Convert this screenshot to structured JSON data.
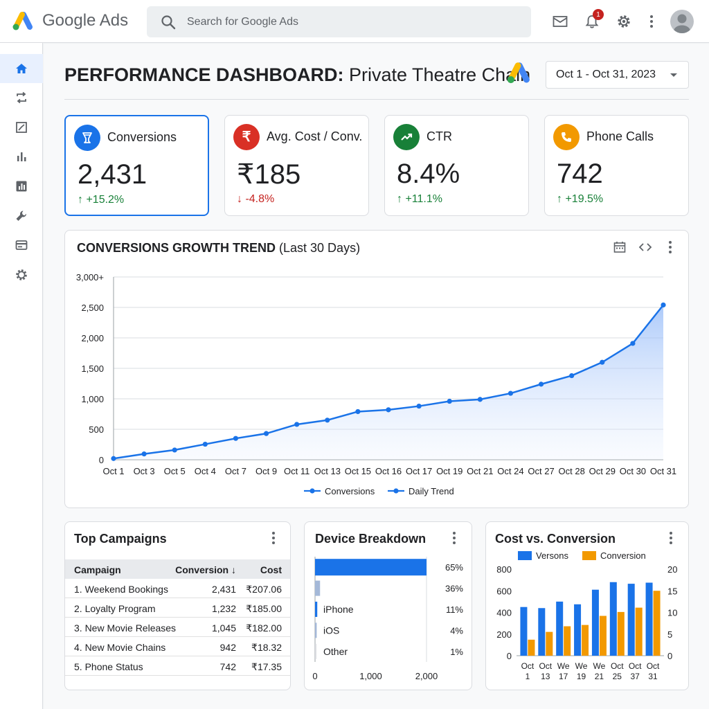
{
  "app": {
    "brand": "Google Ads",
    "search_placeholder": "Search for Google Ads",
    "notification_count": "1"
  },
  "colors": {
    "accent": "#1a73e8",
    "logo_blue": "#4285f4",
    "logo_yellow": "#fbbc04",
    "logo_green": "#34a853",
    "up": "#188038",
    "down": "#c5221f",
    "orange": "#f29900"
  },
  "sidebar": {
    "items": [
      {
        "icon": "home-icon",
        "active": true
      },
      {
        "icon": "sync-icon"
      },
      {
        "icon": "edit-chart-icon"
      },
      {
        "icon": "bar-chart-icon"
      },
      {
        "icon": "report-icon"
      },
      {
        "icon": "wrench-icon"
      },
      {
        "icon": "billing-icon"
      },
      {
        "icon": "settings-icon"
      }
    ]
  },
  "header": {
    "title_strong": "PERFORMANCE DASHBOARD:",
    "title_rest": " Private Theatre Chain",
    "date_range": "Oct 1 - Oct 31, 2023"
  },
  "kpis": [
    {
      "label": "Conversions",
      "value": "2,431",
      "delta": "↑ +15.2%",
      "direction": "up",
      "icon": "trophy-icon",
      "icon_color": "#1a73e8"
    },
    {
      "label": "Avg. Cost / Conv.",
      "value": "₹185",
      "delta": "↓ -4.8%",
      "direction": "down",
      "icon": "rupee-icon",
      "icon_color": "#d93025"
    },
    {
      "label": "CTR",
      "value": "8.4%",
      "delta": "↑ +11.1%",
      "direction": "up",
      "icon": "trending-up-icon",
      "icon_color": "#188038"
    },
    {
      "label": "Phone Calls",
      "value": "742",
      "delta": "↑ +19.5%",
      "direction": "up",
      "icon": "phone-icon",
      "icon_color": "#f29900"
    }
  ],
  "trend": {
    "title_strong": "CONVERSIONS GROWTH TREND",
    "title_rest": " (Last 30 Days)",
    "chart_data": {
      "type": "area",
      "x": [
        "Oct 1",
        "Oct 3",
        "Oct 5",
        "Oct 4",
        "Oct 7",
        "Oct 9",
        "Oct 11",
        "Oct 13",
        "Oct 15",
        "Oct 16",
        "Oct 17",
        "Oct 19",
        "Oct 21",
        "Oct 24",
        "Oct 27",
        "Oct 28",
        "Oct 29",
        "Oct 30",
        "Oct 31"
      ],
      "series": [
        {
          "name": "Conversions",
          "values": [
            20,
            95,
            160,
            255,
            350,
            430,
            580,
            650,
            790,
            820,
            880,
            960,
            990,
            1090,
            1240,
            1380,
            1600,
            1910,
            2540
          ]
        }
      ],
      "legend": [
        "Conversions",
        "Daily Trend"
      ],
      "y_ticks": [
        "0",
        "500",
        "1,000",
        "1,500",
        "2,000",
        "2,500",
        "3,000+"
      ],
      "ylim": [
        0,
        3000
      ],
      "grid": true,
      "legend_position": "bottom"
    }
  },
  "campaigns": {
    "title": "Top Campaigns",
    "headers": [
      "Campaign",
      "Conversion ↓",
      "Cost"
    ],
    "rows": [
      [
        "1. Weekend Bookings",
        "2,431",
        "₹207.06"
      ],
      [
        "2. Loyalty Program",
        "1,232",
        "₹185.00"
      ],
      [
        "3. New Movie Releases",
        "1,045",
        "₹182.00"
      ],
      [
        "4. New Movie Chains",
        "942",
        "₹18.32"
      ],
      [
        "5. Phone Status",
        "742",
        "₹17.35"
      ]
    ]
  },
  "device": {
    "title": "Device Breakdown",
    "chart_data": {
      "type": "bar",
      "orientation": "horizontal",
      "categories": [
        "",
        "",
        "iPhone",
        "iOS",
        "Other"
      ],
      "values": [
        2000,
        90,
        40,
        30,
        20
      ],
      "value_labels": [
        "65%",
        "36%",
        "11%",
        "4%",
        "1%"
      ],
      "x_ticks": [
        "0",
        "1,000",
        "2,000"
      ],
      "xlim": [
        0,
        2000
      ]
    }
  },
  "costconv": {
    "title": "Cost vs. Conversion",
    "chart_data": {
      "type": "bar",
      "categories": [
        [
          "Oct",
          "1"
        ],
        [
          "Oct",
          "13"
        ],
        [
          "We",
          "17"
        ],
        [
          "We",
          "19"
        ],
        [
          "We",
          "21"
        ],
        [
          "Oct",
          "25"
        ],
        [
          "Oct",
          "37"
        ],
        [
          "Oct",
          "31"
        ]
      ],
      "series": [
        {
          "name": "Versons",
          "axis": "left",
          "values": [
            450,
            440,
            500,
            475,
            610,
            680,
            665,
            675
          ]
        },
        {
          "name": "Conversion",
          "axis": "right",
          "values": [
            3.7,
            5.5,
            6.8,
            7.1,
            9.2,
            10.1,
            11.1,
            15.0
          ]
        }
      ],
      "y_left_ticks": [
        "0",
        "200",
        "400",
        "600",
        "800"
      ],
      "y_right_ticks": [
        "0",
        "5",
        "10",
        "15",
        "20"
      ],
      "ylim_left": [
        0,
        800
      ],
      "ylim_right": [
        0,
        20
      ],
      "legend_position": "top"
    }
  }
}
